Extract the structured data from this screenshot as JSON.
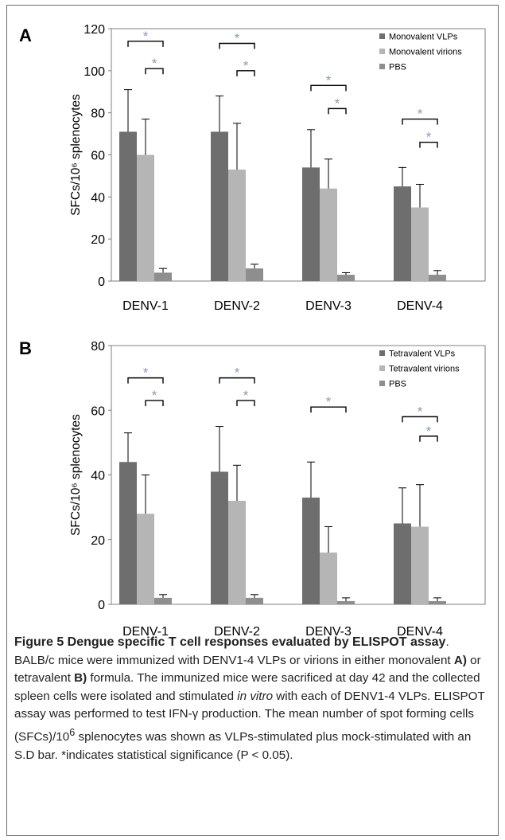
{
  "chart_data": [
    {
      "panel_label": "A",
      "type": "bar",
      "categories": [
        "DENV-1",
        "DENV-2",
        "DENV-3",
        "DENV-4"
      ],
      "ylabel": "SFCs/10⁶ splenocytes",
      "ylim": [
        0,
        120
      ],
      "yticks": [
        0,
        20,
        40,
        60,
        80,
        100,
        120
      ],
      "legend_position": "top-right",
      "grid": false,
      "series": [
        {
          "name": "Monovalent VLPs",
          "color": "#6e6e6e",
          "values": [
            71,
            71,
            54,
            45
          ],
          "errors": [
            20,
            17,
            18,
            9
          ]
        },
        {
          "name": "Monovalent virions",
          "color": "#b5b5b5",
          "values": [
            60,
            53,
            44,
            35
          ],
          "errors": [
            17,
            22,
            14,
            11
          ]
        },
        {
          "name": "PBS",
          "color": "#8e8e8e",
          "values": [
            4,
            6,
            3,
            3
          ],
          "errors": [
            2,
            2,
            1,
            2
          ]
        }
      ],
      "significance_marker": "*",
      "significance": [
        {
          "category": "DENV-1",
          "pairs": [
            [
              "Monovalent VLPs",
              "PBS"
            ],
            [
              "Monovalent virions",
              "PBS"
            ]
          ],
          "y": [
            114,
            101
          ]
        },
        {
          "category": "DENV-2",
          "pairs": [
            [
              "Monovalent VLPs",
              "PBS"
            ],
            [
              "Monovalent virions",
              "PBS"
            ]
          ],
          "y": [
            113,
            100
          ]
        },
        {
          "category": "DENV-3",
          "pairs": [
            [
              "Monovalent VLPs",
              "PBS"
            ],
            [
              "Monovalent virions",
              "PBS"
            ]
          ],
          "y": [
            93,
            82
          ]
        },
        {
          "category": "DENV-4",
          "pairs": [
            [
              "Monovalent VLPs",
              "PBS"
            ],
            [
              "Monovalent virions",
              "PBS"
            ]
          ],
          "y": [
            77,
            66
          ]
        }
      ]
    },
    {
      "panel_label": "B",
      "type": "bar",
      "categories": [
        "DENV-1",
        "DENV-2",
        "DENV-3",
        "DENV-4"
      ],
      "ylabel": "SFCs/10⁶ splenocytes",
      "ylim": [
        0,
        80
      ],
      "yticks": [
        0,
        20,
        40,
        60,
        80
      ],
      "legend_position": "top-right",
      "grid": false,
      "series": [
        {
          "name": "Tetravalent VLPs",
          "color": "#6e6e6e",
          "values": [
            44,
            41,
            33,
            25
          ],
          "errors": [
            9,
            14,
            11,
            11
          ]
        },
        {
          "name": "Tetravalent virions",
          "color": "#b5b5b5",
          "values": [
            28,
            32,
            16,
            24
          ],
          "errors": [
            12,
            11,
            8,
            13
          ]
        },
        {
          "name": "PBS",
          "color": "#8e8e8e",
          "values": [
            2,
            2,
            1,
            1
          ],
          "errors": [
            1,
            1,
            1,
            1
          ]
        }
      ],
      "significance_marker": "*",
      "significance": [
        {
          "category": "DENV-1",
          "pairs": [
            [
              "Tetravalent VLPs",
              "PBS"
            ],
            [
              "Tetravalent virions",
              "PBS"
            ]
          ],
          "y": [
            70,
            63
          ]
        },
        {
          "category": "DENV-2",
          "pairs": [
            [
              "Tetravalent VLPs",
              "PBS"
            ],
            [
              "Tetravalent virions",
              "PBS"
            ]
          ],
          "y": [
            70,
            63
          ]
        },
        {
          "category": "DENV-3",
          "pairs": [
            [
              "Tetravalent VLPs",
              "PBS"
            ]
          ],
          "y": [
            61
          ]
        },
        {
          "category": "DENV-4",
          "pairs": [
            [
              "Tetravalent VLPs",
              "PBS"
            ],
            [
              "Tetravalent virions",
              "PBS"
            ]
          ],
          "y": [
            58,
            52
          ]
        }
      ]
    }
  ],
  "caption": {
    "title": "Figure 5 Dengue specific T cell responses evaluated by ELISPOT assay",
    "part1": ". BALB/c mice were immunized with DENV1-4 VLPs or virions in either monovalent ",
    "bold_a": "A)",
    "part2": " or tetravalent ",
    "bold_b": "B)",
    "part3": " formula. The immunized mice were sacrificed at day 42 and the collected spleen cells were isolated and stimulated ",
    "italic": "in vitro",
    "part4": " with each of DENV1-4 VLPs. ELISPOT assay was performed to test IFN-γ production. The mean number of spot forming cells (SFCs)/10",
    "sup": "6",
    "part5": " splenocytes was shown as VLPs-stimulated plus mock-stimulated with an S.D bar. *indicates statistical significance (P < 0.05)."
  }
}
